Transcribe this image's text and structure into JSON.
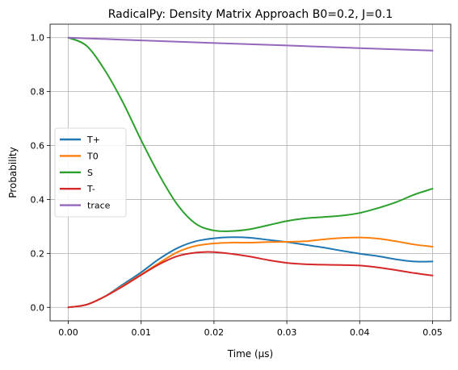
{
  "chart_data": {
    "type": "line",
    "title": "RadicalPy: Density Matrix Approach B0=0.2, J=0.1",
    "xlabel": "Time (μs)",
    "ylabel": "Probability",
    "xlim": [
      -0.0025,
      0.0525
    ],
    "ylim": [
      -0.05,
      1.05
    ],
    "xticks": [
      0.0,
      0.01,
      0.02,
      0.03,
      0.04,
      0.05
    ],
    "xtick_labels": [
      "0.00",
      "0.01",
      "0.02",
      "0.03",
      "0.04",
      "0.05"
    ],
    "yticks": [
      0.0,
      0.2,
      0.4,
      0.6,
      0.8,
      1.0
    ],
    "ytick_labels": [
      "0.0",
      "0.2",
      "0.4",
      "0.6",
      "0.8",
      "1.0"
    ],
    "grid": true,
    "legend_position": "center-left",
    "series": [
      {
        "name": "T+",
        "color": "#1f77b4",
        "x": [
          0,
          0.0025,
          0.005,
          0.0075,
          0.01,
          0.0125,
          0.015,
          0.0175,
          0.02,
          0.0225,
          0.025,
          0.0275,
          0.03,
          0.0325,
          0.035,
          0.0375,
          0.04,
          0.0425,
          0.045,
          0.0475,
          0.05
        ],
        "y": [
          0.0,
          0.01,
          0.04,
          0.085,
          0.13,
          0.18,
          0.22,
          0.245,
          0.256,
          0.26,
          0.258,
          0.25,
          0.242,
          0.232,
          0.222,
          0.21,
          0.199,
          0.19,
          0.178,
          0.17,
          0.17
        ]
      },
      {
        "name": "T0",
        "color": "#ff7f0e",
        "x": [
          0,
          0.0025,
          0.005,
          0.0075,
          0.01,
          0.0125,
          0.015,
          0.0175,
          0.02,
          0.0225,
          0.025,
          0.0275,
          0.03,
          0.0325,
          0.035,
          0.0375,
          0.04,
          0.0425,
          0.045,
          0.0475,
          0.05
        ],
        "y": [
          0.0,
          0.01,
          0.04,
          0.08,
          0.122,
          0.165,
          0.205,
          0.228,
          0.237,
          0.24,
          0.24,
          0.242,
          0.243,
          0.245,
          0.252,
          0.257,
          0.259,
          0.255,
          0.245,
          0.233,
          0.225
        ]
      },
      {
        "name": "S",
        "color": "#2ca02c",
        "x": [
          0,
          0.0025,
          0.005,
          0.0075,
          0.01,
          0.0125,
          0.015,
          0.0175,
          0.02,
          0.0225,
          0.025,
          0.0275,
          0.03,
          0.0325,
          0.035,
          0.0375,
          0.04,
          0.0425,
          0.045,
          0.0475,
          0.05
        ],
        "y": [
          1.0,
          0.97,
          0.88,
          0.76,
          0.62,
          0.49,
          0.38,
          0.31,
          0.285,
          0.283,
          0.29,
          0.305,
          0.32,
          0.33,
          0.335,
          0.34,
          0.35,
          0.368,
          0.39,
          0.418,
          0.44
        ]
      },
      {
        "name": "T-",
        "color": "#d62728",
        "x": [
          0,
          0.0025,
          0.005,
          0.0075,
          0.01,
          0.0125,
          0.015,
          0.0175,
          0.02,
          0.0225,
          0.025,
          0.0275,
          0.03,
          0.0325,
          0.035,
          0.0375,
          0.04,
          0.0425,
          0.045,
          0.0475,
          0.05
        ],
        "y": [
          0.0,
          0.01,
          0.04,
          0.078,
          0.12,
          0.16,
          0.19,
          0.203,
          0.205,
          0.198,
          0.188,
          0.175,
          0.165,
          0.16,
          0.158,
          0.157,
          0.155,
          0.148,
          0.138,
          0.127,
          0.118
        ]
      },
      {
        "name": "trace",
        "color": "#9467bd",
        "x": [
          0,
          0.01,
          0.02,
          0.03,
          0.04,
          0.05
        ],
        "y": [
          1.0,
          0.99,
          0.98,
          0.971,
          0.961,
          0.952
        ]
      }
    ]
  }
}
